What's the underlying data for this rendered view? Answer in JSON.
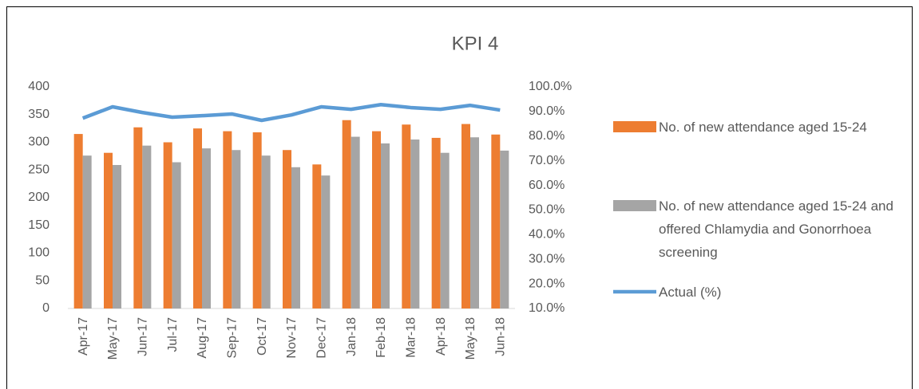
{
  "chart_data": {
    "type": "bar",
    "title": "KPI 4",
    "categories": [
      "Apr-17",
      "May-17",
      "Jun-17",
      "Jul-17",
      "Aug-17",
      "Sep-17",
      "Oct-17",
      "Nov-17",
      "Dec-17",
      "Jan-18",
      "Feb-18",
      "Mar-18",
      "Apr-18",
      "May-18",
      "Jun-18"
    ],
    "series": [
      {
        "name": "No. of new attendance aged 15-24",
        "color": "#ed7d31",
        "type": "bar",
        "values": [
          315,
          281,
          327,
          300,
          325,
          320,
          318,
          286,
          260,
          340,
          320,
          332,
          308,
          333,
          314
        ]
      },
      {
        "name": "No. of new attendance aged 15-24 and offered Chlamydia and Gonorrhoea screening",
        "color": "#a5a5a5",
        "type": "bar",
        "values": [
          276,
          259,
          294,
          264,
          289,
          286,
          276,
          255,
          240,
          310,
          298,
          305,
          281,
          309,
          285
        ]
      },
      {
        "name": "Actual  (%)",
        "color": "#5b9bd5",
        "type": "line",
        "axis": "y2",
        "values": [
          87.3,
          91.9,
          89.6,
          87.7,
          88.3,
          89.0,
          86.4,
          88.6,
          91.9,
          90.9,
          92.8,
          91.6,
          90.9,
          92.5,
          90.6
        ]
      }
    ],
    "ylim": [
      0,
      400
    ],
    "yticks": [
      0,
      50,
      100,
      150,
      200,
      250,
      300,
      350,
      400
    ],
    "y2lim": [
      10,
      100
    ],
    "y2ticks": [
      {
        "value": 10,
        "label": "10.0%"
      },
      {
        "value": 20,
        "label": "20.0%"
      },
      {
        "value": 30,
        "label": "30.0%"
      },
      {
        "value": 40,
        "label": "40.0%"
      },
      {
        "value": 50,
        "label": "50.0%"
      },
      {
        "value": 60,
        "label": "60.0%"
      },
      {
        "value": 70,
        "label": "70.0%"
      },
      {
        "value": 80,
        "label": "80.0%"
      },
      {
        "value": 90,
        "label": "90.0%"
      },
      {
        "value": 100,
        "label": "100.0%"
      }
    ],
    "legend": "right",
    "grid": false
  }
}
